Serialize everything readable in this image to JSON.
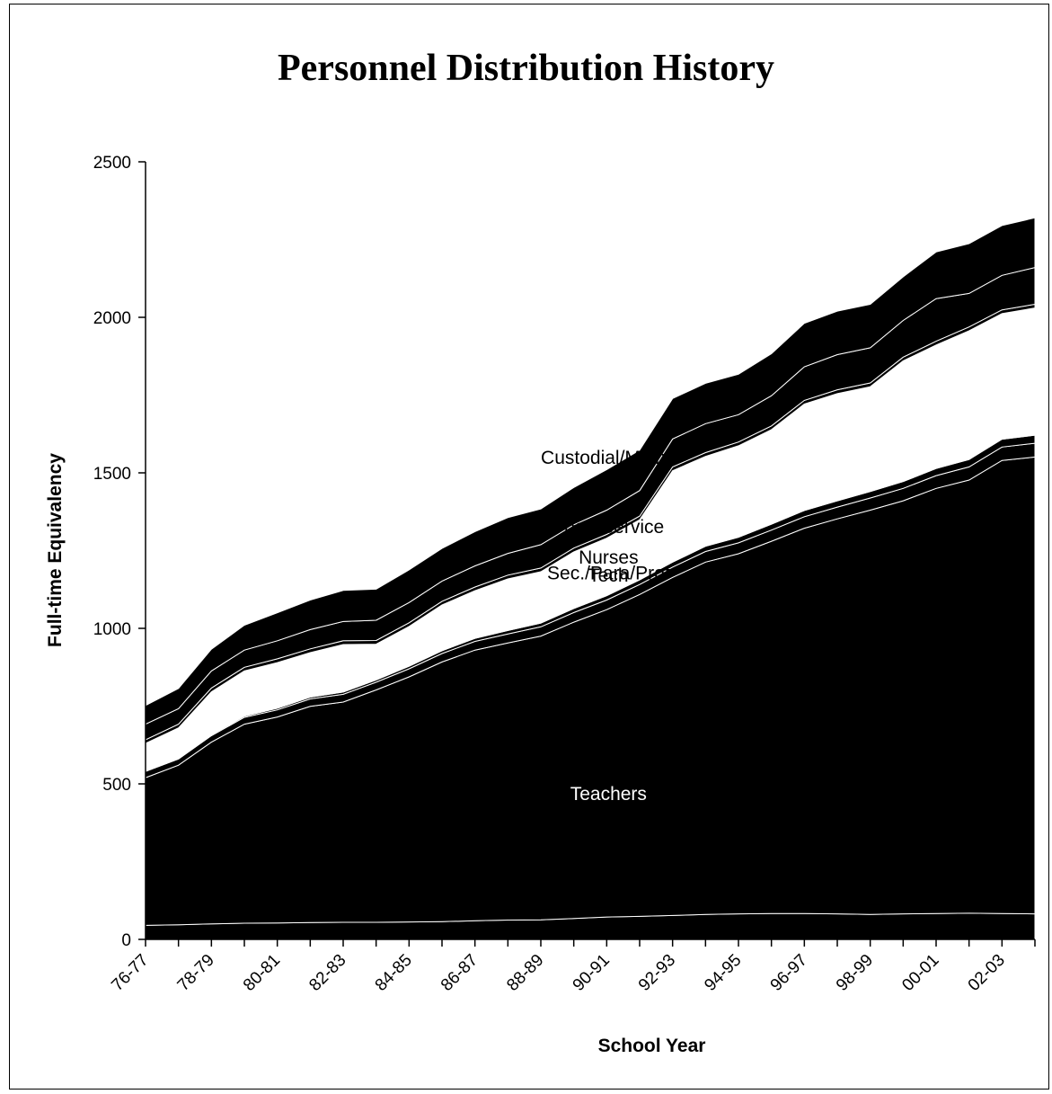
{
  "title": "Personnel Distribution History",
  "chart_data": {
    "type": "area",
    "stacked": true,
    "title": "Personnel Distribution History",
    "xlabel": "School Year",
    "ylabel": "Full-time Equivalency",
    "ylim": [
      0,
      2500
    ],
    "yticks": [
      0,
      500,
      1000,
      1500,
      2000,
      2500
    ],
    "categories": [
      "76-77",
      "77-78",
      "78-79",
      "79-80",
      "80-81",
      "81-82",
      "82-83",
      "83-84",
      "84-85",
      "85-86",
      "86-87",
      "87-88",
      "88-89",
      "89-90",
      "90-91",
      "91-92",
      "92-93",
      "93-94",
      "94-95",
      "95-96",
      "96-97",
      "97-98",
      "98-99",
      "99-00",
      "00-01",
      "01-02",
      "02-03",
      "03-04"
    ],
    "visible_tick_labels": [
      "76-77",
      "78-79",
      "80-81",
      "82-83",
      "84-85",
      "86-87",
      "88-89",
      "90-91",
      "92-93",
      "94-95",
      "96-97",
      "98-99",
      "00-01",
      "02-03"
    ],
    "series": [
      {
        "name": "",
        "color": "#000000",
        "values": [
          45,
          47,
          50,
          52,
          53,
          54,
          55,
          55,
          56,
          57,
          60,
          62,
          63,
          67,
          72,
          74,
          77,
          80,
          82,
          83,
          83,
          82,
          80,
          82,
          83,
          84,
          83,
          82
        ]
      },
      {
        "name": "Teachers",
        "color": "#000000",
        "values": [
          475,
          513,
          584,
          640,
          662,
          695,
          708,
          747,
          788,
          835,
          870,
          891,
          912,
          953,
          988,
          1035,
          1087,
          1133,
          1158,
          1197,
          1239,
          1270,
          1300,
          1328,
          1367,
          1393,
          1457,
          1469
        ]
      },
      {
        "name": "Nurses",
        "color": "#000000",
        "values": [
          20,
          20,
          21,
          22,
          23,
          24,
          25,
          25,
          26,
          27,
          28,
          29,
          30,
          31,
          31,
          32,
          33,
          34,
          35,
          36,
          37,
          38,
          39,
          40,
          41,
          42,
          43,
          44
        ]
      },
      {
        "name": "Tech",
        "color": "#000000",
        "values": [
          2,
          2,
          3,
          4,
          5,
          6,
          7,
          7,
          8,
          9,
          10,
          11,
          12,
          13,
          14,
          15,
          16,
          17,
          18,
          19,
          20,
          20,
          21,
          22,
          23,
          24,
          25,
          26
        ]
      },
      {
        "name": "Sec./Para/Prof",
        "color": "#ffffff",
        "values": [
          88,
          98,
          138,
          145,
          147,
          143,
          153,
          115,
          128,
          147,
          153,
          166,
          165,
          182,
          185,
          193,
          294,
          289,
          294,
          304,
          342,
          345,
          337,
          388,
          397,
          414,
          404,
          409
        ]
      },
      {
        "name": "",
        "color": "#000000",
        "values": [
          12,
          12,
          12,
          12,
          12,
          12,
          12,
          12,
          12,
          12,
          12,
          12,
          12,
          12,
          12,
          12,
          12,
          12,
          12,
          12,
          12,
          12,
          12,
          12,
          12,
          12,
          12,
          12
        ]
      },
      {
        "name": "Food Service",
        "color": "#000000",
        "values": [
          50,
          50,
          55,
          55,
          58,
          62,
          62,
          65,
          65,
          65,
          68,
          70,
          75,
          75,
          78,
          82,
          90,
          93,
          88,
          97,
          108,
          113,
          113,
          118,
          137,
          108,
          111,
          118
        ]
      },
      {
        "name": "Custodial/Maint.",
        "color": "#000000",
        "values": [
          60,
          65,
          70,
          80,
          90,
          95,
          100,
          100,
          105,
          105,
          110,
          115,
          115,
          120,
          130,
          130,
          130,
          130,
          130,
          135,
          140,
          140,
          140,
          140,
          150,
          160,
          160,
          160
        ]
      }
    ],
    "series_label_colors": {
      "Custodial/Maint.": "#000000",
      "Food Service": "#000000",
      "Sec./Para/Prof": "#000000",
      "Tech": "#000000",
      "Nurses": "#000000",
      "Teachers": "#ffffff"
    },
    "grid": false,
    "legend": "none"
  }
}
